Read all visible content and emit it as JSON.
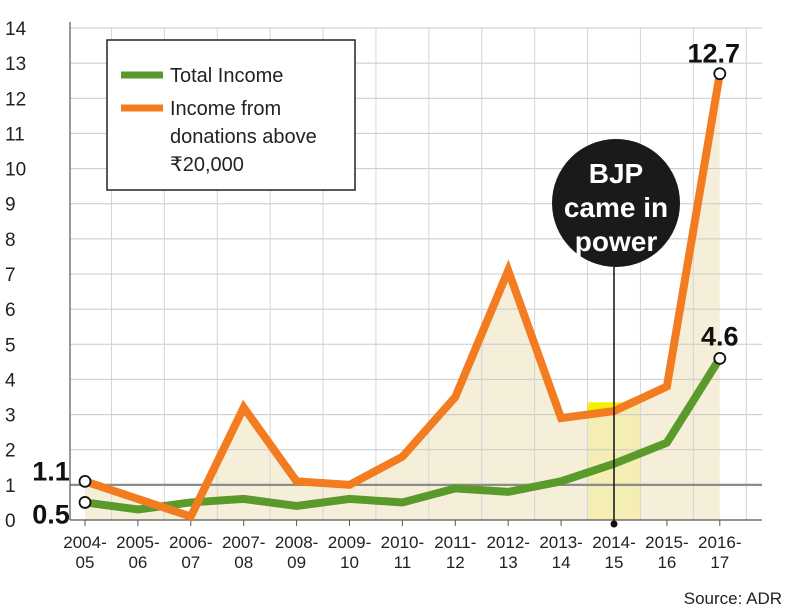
{
  "chart_data": {
    "type": "line",
    "categories": [
      [
        "2004-",
        "05"
      ],
      [
        "2005-",
        "06"
      ],
      [
        "2006-",
        "07"
      ],
      [
        "2007-",
        "08"
      ],
      [
        "2008-",
        "09"
      ],
      [
        "2009-",
        "10"
      ],
      [
        "2010-",
        "11"
      ],
      [
        "2011-",
        "12"
      ],
      [
        "2012-",
        "13"
      ],
      [
        "2013-",
        "14"
      ],
      [
        "2014-",
        "15"
      ],
      [
        "2015-",
        "16"
      ],
      [
        "2016-",
        "17"
      ]
    ],
    "series": [
      {
        "name": "Total Income",
        "color": "#5a9a2a",
        "values": [
          0.5,
          0.3,
          0.5,
          0.6,
          0.4,
          0.6,
          0.5,
          0.9,
          0.8,
          1.1,
          1.6,
          2.2,
          4.6
        ]
      },
      {
        "name": "Income from donations above ₹20,000",
        "legend_lines": [
          "Income from",
          "donations above",
          "₹20,000"
        ],
        "color": "#f47c20",
        "values": [
          1.1,
          0.6,
          0.1,
          3.2,
          1.1,
          1.0,
          1.8,
          3.5,
          7.1,
          2.9,
          3.1,
          3.8,
          12.7
        ]
      }
    ],
    "ylim": [
      0,
      14
    ],
    "yticks": [
      0,
      1,
      2,
      3,
      4,
      5,
      6,
      7,
      8,
      9,
      10,
      11,
      12,
      13,
      14
    ],
    "grid": true,
    "legend_position": "top-left",
    "reference_line": {
      "value": 1,
      "color": "#8c8c8c"
    },
    "highlight": {
      "category_index": 10,
      "color": "#f7ef00"
    },
    "area_fill_color": "#f3ecd3",
    "data_labels": [
      {
        "text": "1.1",
        "series": 1,
        "index": 0
      },
      {
        "text": "0.5",
        "series": 0,
        "index": 0
      },
      {
        "text": "12.7",
        "series": 1,
        "index": 12
      },
      {
        "text": "4.6",
        "series": 0,
        "index": 12
      }
    ],
    "annotation": {
      "lines": [
        "BJP",
        "came in",
        "power"
      ],
      "category_index": 10,
      "bubble_color": "#1a1a1a"
    },
    "source": "Source: ADR"
  }
}
